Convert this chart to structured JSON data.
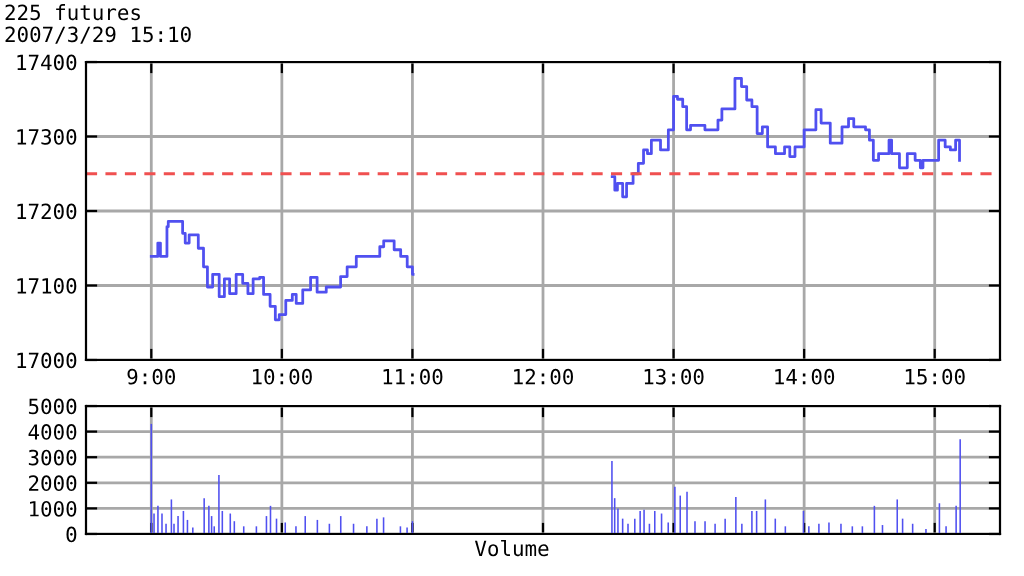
{
  "chart_data": [
    {
      "type": "step",
      "title": "225 futures",
      "subtitle": "2007/3/29 15:10",
      "color": "#5050f0",
      "grid": true,
      "marker": "none",
      "line_style": "solid",
      "xlim": [
        8.5,
        15.5
      ],
      "xticks": [
        {
          "value": 9,
          "label": "9:00"
        },
        {
          "value": 10,
          "label": "10:00"
        },
        {
          "value": 11,
          "label": "11:00"
        },
        {
          "value": 12,
          "label": "12:00"
        },
        {
          "value": 13,
          "label": "13:00"
        },
        {
          "value": 14,
          "label": "14:00"
        },
        {
          "value": 15,
          "label": "15:00"
        }
      ],
      "ylim": [
        17000,
        17400
      ],
      "yticks": [
        17000,
        17100,
        17200,
        17300,
        17400
      ],
      "ref_lines": [
        {
          "axis": "y",
          "value": 17250,
          "color": "#f05050",
          "line_style": "dashed"
        }
      ],
      "x": [
        9.0,
        9.05,
        9.07,
        9.12,
        9.13,
        9.24,
        9.26,
        9.29,
        9.36,
        9.4,
        9.43,
        9.47,
        9.52,
        9.56,
        9.6,
        9.65,
        9.7,
        9.74,
        9.78,
        9.83,
        9.86,
        9.91,
        9.95,
        9.98,
        10.03,
        10.08,
        10.11,
        10.16,
        10.22,
        10.27,
        10.34,
        10.45,
        10.5,
        10.57,
        10.65,
        10.75,
        10.78,
        10.86,
        10.91,
        10.96,
        11.0,
        11.005,
        12.53,
        12.55,
        12.57,
        12.61,
        12.64,
        12.69,
        12.73,
        12.77,
        12.8,
        12.83,
        12.9,
        12.96,
        13.0,
        13.03,
        13.07,
        13.1,
        13.13,
        13.24,
        13.34,
        13.37,
        13.47,
        13.52,
        13.56,
        13.6,
        13.64,
        13.68,
        13.72,
        13.78,
        13.85,
        13.89,
        13.93,
        14.0,
        14.06,
        14.09,
        14.13,
        14.2,
        14.26,
        14.29,
        14.34,
        14.38,
        14.47,
        14.5,
        14.53,
        14.57,
        14.65,
        14.67,
        14.73,
        14.79,
        14.85,
        14.89,
        14.91,
        15.01,
        15.03,
        15.08,
        15.12,
        15.16,
        15.19
      ],
      "values": [
        17139,
        17157,
        17139,
        17179,
        17186,
        17170,
        17157,
        17168,
        17150,
        17125,
        17098,
        17115,
        17085,
        17109,
        17089,
        17115,
        17103,
        17089,
        17109,
        17111,
        17088,
        17072,
        17054,
        17061,
        17080,
        17088,
        17076,
        17094,
        17111,
        17091,
        17098,
        17112,
        17125,
        17139,
        17139,
        17152,
        17160,
        17148,
        17139,
        17125,
        17115,
        null,
        17246,
        17228,
        17237,
        17219,
        17237,
        17250,
        17264,
        17282,
        17277,
        17295,
        17282,
        17309,
        17354,
        17350,
        17340,
        17309,
        17315,
        17309,
        17322,
        17337,
        17378,
        17367,
        17349,
        17340,
        17304,
        17313,
        17286,
        17277,
        17286,
        17273,
        17286,
        17309,
        17309,
        17336,
        17318,
        17291,
        17291,
        17313,
        17324,
        17313,
        17309,
        17295,
        17268,
        17277,
        17295,
        17277,
        17258,
        17277,
        17268,
        17258,
        17268,
        17268,
        17295,
        17286,
        17282,
        17295,
        17268
      ]
    },
    {
      "type": "bar",
      "xlabel": "Volume",
      "color": "#5050f0",
      "grid": true,
      "tick_labels": "y",
      "xlim": [
        8.5,
        15.5
      ],
      "xticks": [
        {
          "value": 9,
          "label": null
        },
        {
          "value": 10,
          "label": null
        },
        {
          "value": 11,
          "label": null
        },
        {
          "value": 12,
          "label": null
        },
        {
          "value": 13,
          "label": null
        },
        {
          "value": 14,
          "label": null
        },
        {
          "value": 15,
          "label": null
        }
      ],
      "ylim": [
        0,
        5000
      ],
      "yticks": [
        0,
        1000,
        2000,
        3000,
        4000,
        5000
      ],
      "x": [
        9.0,
        9.021,
        9.051,
        9.082,
        9.113,
        9.154,
        9.174,
        9.205,
        9.246,
        9.277,
        9.318,
        9.405,
        9.441,
        9.462,
        9.482,
        9.518,
        9.544,
        9.605,
        9.636,
        9.708,
        9.805,
        9.882,
        9.913,
        9.959,
        10.026,
        10.108,
        10.179,
        10.272,
        10.364,
        10.451,
        10.549,
        10.651,
        10.728,
        10.779,
        10.908,
        10.959,
        11.0,
        12.528,
        12.549,
        12.574,
        12.61,
        12.651,
        12.703,
        12.744,
        12.774,
        12.815,
        12.856,
        12.908,
        12.959,
        13.01,
        13.051,
        13.103,
        13.164,
        13.241,
        13.318,
        13.395,
        13.477,
        13.523,
        13.6,
        13.636,
        13.703,
        13.779,
        13.856,
        13.933,
        13.995,
        14.036,
        14.113,
        14.19,
        14.282,
        14.369,
        14.446,
        14.538,
        14.6,
        14.713,
        14.754,
        14.831,
        14.933,
        15.036,
        15.087,
        15.164,
        15.195
      ],
      "values": [
        4300,
        800,
        1100,
        800,
        400,
        1350,
        400,
        700,
        900,
        550,
        250,
        1400,
        1100,
        700,
        300,
        2300,
        900,
        800,
        500,
        300,
        300,
        700,
        1100,
        600,
        450,
        300,
        700,
        550,
        400,
        700,
        400,
        300,
        600,
        650,
        300,
        250,
        500,
        2850,
        1400,
        1000,
        600,
        400,
        600,
        900,
        950,
        400,
        900,
        800,
        450,
        1850,
        1500,
        1650,
        500,
        500,
        400,
        600,
        1450,
        400,
        900,
        900,
        1350,
        600,
        300,
        null,
        900,
        300,
        400,
        450,
        400,
        300,
        300,
        1100,
        350,
        1350,
        600,
        400,
        200,
        1200,
        300,
        1100,
        3700
      ]
    }
  ]
}
